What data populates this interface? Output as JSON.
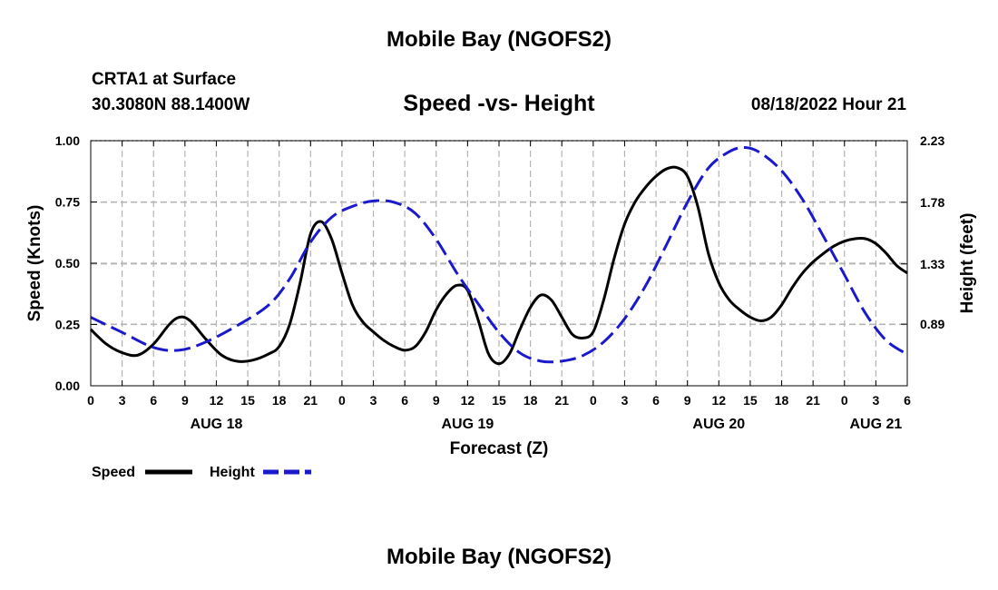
{
  "header": {
    "title": "Mobile Bay (NGOFS2)",
    "station": "CRTA1 at Surface",
    "coords": "30.3080N  88.1400W",
    "chart_title": "Speed -vs- Height",
    "datetime": "08/18/2022 Hour 21"
  },
  "footer": {
    "title": "Mobile Bay (NGOFS2)"
  },
  "colors": {
    "speed": "#000000",
    "height": "#1a1acc",
    "grid": "#b4b4b4"
  },
  "chart_data": {
    "type": "line",
    "title": "Speed -vs- Height",
    "xlabel": "Forecast (Z)",
    "ylabel": "Speed (Knots)",
    "y2label": "Height (feet)",
    "xlim": [
      0,
      78
    ],
    "ylim": [
      0,
      1.0
    ],
    "y2lim": [
      0.44,
      2.23
    ],
    "x_tick_values": [
      0,
      3,
      6,
      9,
      12,
      15,
      18,
      21,
      24,
      27,
      30,
      33,
      36,
      39,
      42,
      45,
      48,
      51,
      54,
      57,
      60,
      63,
      66,
      69,
      72,
      75,
      78
    ],
    "x_tick_labels": [
      "0",
      "3",
      "6",
      "9",
      "12",
      "15",
      "18",
      "21",
      "0",
      "3",
      "6",
      "9",
      "12",
      "15",
      "18",
      "21",
      "0",
      "3",
      "6",
      "9",
      "12",
      "15",
      "18",
      "21",
      "0",
      "3",
      "6"
    ],
    "day_labels": [
      {
        "label": "AUG 18",
        "x": 12
      },
      {
        "label": "AUG 19",
        "x": 36
      },
      {
        "label": "AUG 20",
        "x": 60
      },
      {
        "label": "AUG 21",
        "x": 75
      }
    ],
    "y_ticks": [
      0,
      0.25,
      0.5,
      0.75,
      1.0
    ],
    "y_tick_labels": [
      "0.00",
      "0.25",
      "0.50",
      "0.75",
      "1.00"
    ],
    "y2_ticks": [
      0.89,
      1.33,
      1.78,
      2.23
    ],
    "y2_tick_labels": [
      "0.89",
      "1.33",
      "1.78",
      "2.23"
    ],
    "legend": [
      {
        "name": "Speed"
      },
      {
        "name": "Height"
      }
    ],
    "series": [
      {
        "name": "Speed",
        "axis": "left",
        "points": [
          [
            0,
            0.23
          ],
          [
            1.5,
            0.17
          ],
          [
            3,
            0.135
          ],
          [
            4.5,
            0.125
          ],
          [
            6,
            0.17
          ],
          [
            7.5,
            0.25
          ],
          [
            8.5,
            0.28
          ],
          [
            9.5,
            0.265
          ],
          [
            11,
            0.19
          ],
          [
            12.5,
            0.125
          ],
          [
            14,
            0.1
          ],
          [
            15.5,
            0.105
          ],
          [
            17,
            0.13
          ],
          [
            18,
            0.16
          ],
          [
            19,
            0.25
          ],
          [
            20,
            0.42
          ],
          [
            21,
            0.62
          ],
          [
            22,
            0.67
          ],
          [
            23,
            0.6
          ],
          [
            24,
            0.46
          ],
          [
            25,
            0.33
          ],
          [
            26,
            0.26
          ],
          [
            27,
            0.22
          ],
          [
            28,
            0.185
          ],
          [
            29,
            0.16
          ],
          [
            30,
            0.145
          ],
          [
            31,
            0.16
          ],
          [
            32,
            0.22
          ],
          [
            33,
            0.31
          ],
          [
            34,
            0.375
          ],
          [
            35,
            0.41
          ],
          [
            36,
            0.39
          ],
          [
            37,
            0.27
          ],
          [
            38,
            0.13
          ],
          [
            39,
            0.09
          ],
          [
            40,
            0.13
          ],
          [
            41,
            0.23
          ],
          [
            42,
            0.32
          ],
          [
            43,
            0.37
          ],
          [
            44,
            0.35
          ],
          [
            45,
            0.28
          ],
          [
            46,
            0.21
          ],
          [
            47,
            0.195
          ],
          [
            48,
            0.22
          ],
          [
            49,
            0.35
          ],
          [
            50,
            0.52
          ],
          [
            51,
            0.66
          ],
          [
            52,
            0.75
          ],
          [
            53,
            0.81
          ],
          [
            54,
            0.855
          ],
          [
            55,
            0.885
          ],
          [
            56,
            0.89
          ],
          [
            57,
            0.855
          ],
          [
            58,
            0.73
          ],
          [
            59,
            0.54
          ],
          [
            60,
            0.42
          ],
          [
            61,
            0.35
          ],
          [
            62,
            0.31
          ],
          [
            63,
            0.28
          ],
          [
            64,
            0.265
          ],
          [
            65,
            0.28
          ],
          [
            66,
            0.33
          ],
          [
            67,
            0.4
          ],
          [
            68,
            0.46
          ],
          [
            69,
            0.505
          ],
          [
            70,
            0.54
          ],
          [
            71,
            0.57
          ],
          [
            72,
            0.59
          ],
          [
            73,
            0.6
          ],
          [
            74,
            0.6
          ],
          [
            75,
            0.58
          ],
          [
            76,
            0.54
          ],
          [
            77,
            0.49
          ],
          [
            78,
            0.46
          ]
        ]
      },
      {
        "name": "Height",
        "axis": "right",
        "points": [
          [
            0,
            0.94
          ],
          [
            3,
            0.83
          ],
          [
            6,
            0.72
          ],
          [
            8.5,
            0.7
          ],
          [
            11,
            0.76
          ],
          [
            14,
            0.88
          ],
          [
            17,
            1.03
          ],
          [
            19,
            1.22
          ],
          [
            21,
            1.49
          ],
          [
            23,
            1.67
          ],
          [
            25,
            1.75
          ],
          [
            27,
            1.79
          ],
          [
            29,
            1.78
          ],
          [
            31,
            1.7
          ],
          [
            33,
            1.51
          ],
          [
            35,
            1.26
          ],
          [
            37,
            1.04
          ],
          [
            39,
            0.83
          ],
          [
            41,
            0.68
          ],
          [
            43,
            0.62
          ],
          [
            45,
            0.62
          ],
          [
            47,
            0.66
          ],
          [
            49,
            0.76
          ],
          [
            51,
            0.93
          ],
          [
            53,
            1.17
          ],
          [
            55,
            1.47
          ],
          [
            57,
            1.78
          ],
          [
            59,
            2.03
          ],
          [
            61,
            2.15
          ],
          [
            62.5,
            2.18
          ],
          [
            64,
            2.14
          ],
          [
            66,
            2.01
          ],
          [
            68,
            1.8
          ],
          [
            70,
            1.53
          ],
          [
            72,
            1.25
          ],
          [
            74,
            0.97
          ],
          [
            76,
            0.77
          ],
          [
            78,
            0.67
          ]
        ]
      }
    ]
  }
}
